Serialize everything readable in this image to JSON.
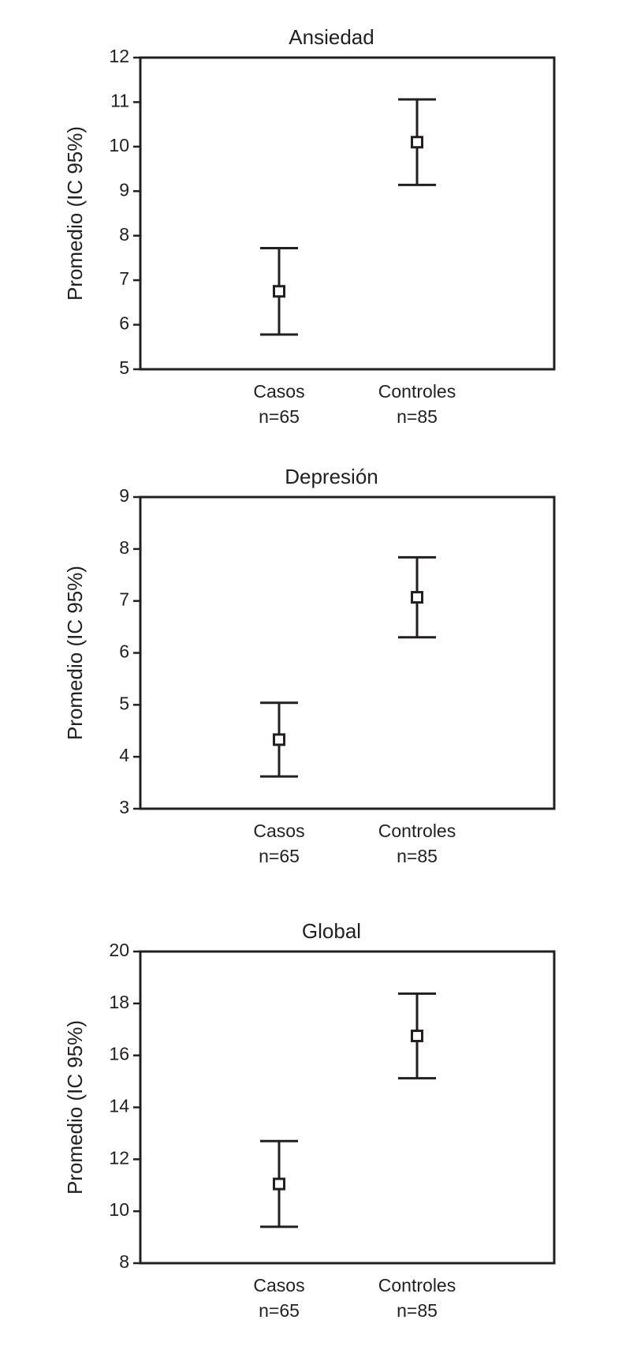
{
  "chart_data": [
    {
      "type": "errorbar",
      "title": "Ansiedad",
      "y_label": "Promedio (IC 95%)",
      "categories": [
        "Casos",
        "Controles"
      ],
      "category_sublabels": [
        "n=65",
        "n=85"
      ],
      "values": [
        6.75,
        10.1
      ],
      "errors": [
        0.97,
        0.96
      ],
      "color": "#231f20",
      "ylim": [
        5,
        12
      ],
      "yticks": [
        5,
        6,
        7,
        8,
        9,
        10,
        11,
        12
      ]
    },
    {
      "type": "errorbar",
      "title": "Depresión",
      "y_label": "Promedio (IC 95%)",
      "categories": [
        "Casos",
        "Controles"
      ],
      "category_sublabels": [
        "n=65",
        "n=85"
      ],
      "values": [
        4.33,
        7.07
      ],
      "errors": [
        0.71,
        0.77
      ],
      "color": "#231f20",
      "ylim": [
        3,
        9
      ],
      "yticks": [
        3,
        4,
        5,
        6,
        7,
        8,
        9
      ]
    },
    {
      "type": "errorbar",
      "title": "Global",
      "y_label": "Promedio (IC 95%)",
      "categories": [
        "Casos",
        "Controles"
      ],
      "category_sublabels": [
        "n=65",
        "n=85"
      ],
      "values": [
        11.05,
        16.75
      ],
      "errors": [
        1.65,
        1.63
      ],
      "color": "#231f20",
      "ylim": [
        8,
        20
      ],
      "yticks": [
        8,
        10,
        12,
        14,
        16,
        18,
        20
      ]
    }
  ]
}
